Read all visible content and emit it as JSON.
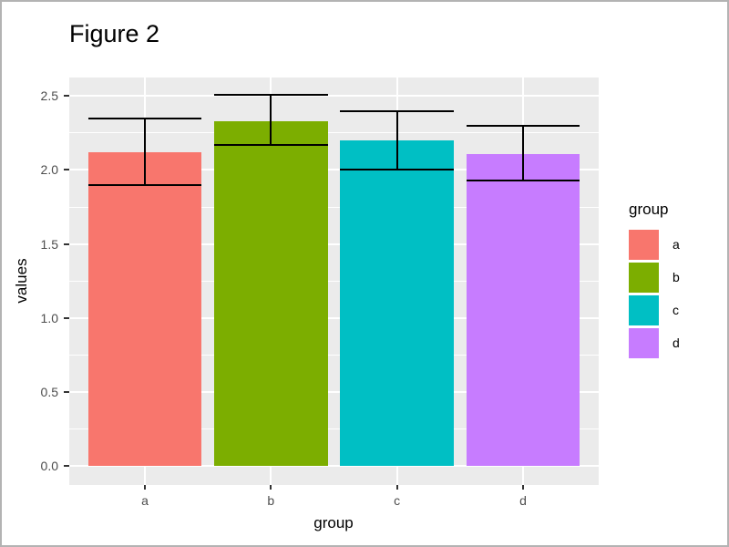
{
  "figure": {
    "title": "Figure 2"
  },
  "axes": {
    "x_title": "group",
    "y_title": "values"
  },
  "legend": {
    "title": "group"
  },
  "colors": {
    "background": "#FFFFFF",
    "panel_background": "#EBEBEB",
    "gridline": "#FFFFFF",
    "tick_label": "#4D4D4D",
    "tick_mark": "#333333",
    "axis_title": "#000000",
    "error_bar": "#000000",
    "frame_border": "#B3B3B3"
  },
  "chart_data": {
    "type": "bar",
    "title": "Figure 2",
    "xlabel": "group",
    "ylabel": "values",
    "categories": [
      "a",
      "b",
      "c",
      "d"
    ],
    "series": [
      {
        "name": "values",
        "values": [
          2.12,
          2.33,
          2.2,
          2.11
        ]
      }
    ],
    "error_bars": {
      "upper": [
        2.35,
        2.51,
        2.4,
        2.3
      ],
      "lower": [
        1.9,
        2.17,
        2.0,
        1.93
      ]
    },
    "bar_colors": [
      "#F8766D",
      "#7CAE00",
      "#00BFC4",
      "#C77CFF"
    ],
    "ylim": [
      -0.125,
      2.625
    ],
    "yticks": [
      0.0,
      0.5,
      1.0,
      1.5,
      2.0,
      2.5
    ],
    "ytick_labels": [
      "0.0",
      "0.5",
      "1.0",
      "1.5",
      "2.0",
      "2.5"
    ],
    "minor_yticks": [
      0.25,
      0.75,
      1.25,
      1.75,
      2.25
    ],
    "grid": true,
    "bar_rel_width": 0.9,
    "legend": {
      "title": "group",
      "position": "right",
      "entries": [
        {
          "label": "a",
          "color": "#F8766D"
        },
        {
          "label": "b",
          "color": "#7CAE00"
        },
        {
          "label": "c",
          "color": "#00BFC4"
        },
        {
          "label": "d",
          "color": "#C77CFF"
        }
      ]
    }
  }
}
